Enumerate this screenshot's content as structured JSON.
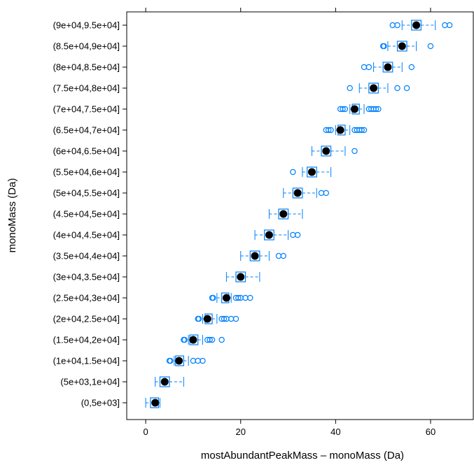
{
  "chart_data": {
    "type": "boxplot",
    "xlabel": "mostAbundantPeakMass – monoMass (Da)",
    "ylabel": "monoMass (Da)",
    "xlim": [
      -4,
      69
    ],
    "x_ticks": [
      0,
      20,
      40,
      60
    ],
    "grid": false,
    "colors": {
      "box": "#0080ff",
      "median": "#000000"
    },
    "categories": [
      "(0,5e+03]",
      "(5e+03,1e+04]",
      "(1e+04,1.5e+04]",
      "(1.5e+04,2e+04]",
      "(2e+04,2.5e+04]",
      "(2.5e+04,3e+04]",
      "(3e+04,3.5e+04]",
      "(3.5e+04,4e+04]",
      "(4e+04,4.5e+04]",
      "(4.5e+04,5e+04]",
      "(5e+04,5.5e+04]",
      "(5.5e+04,6e+04]",
      "(6e+04,6.5e+04]",
      "(6.5e+04,7e+04]",
      "(7e+04,7.5e+04]",
      "(7.5e+04,8e+04]",
      "(8e+04,8.5e+04]",
      "(8.5e+04,9e+04]",
      "(9e+04,9.5e+04]"
    ],
    "boxes": [
      {
        "whisker_low": 0,
        "q1": 1,
        "median": 2,
        "q3": 2.7,
        "whisker_high": 3,
        "outliers": []
      },
      {
        "whisker_low": 2,
        "q1": 3,
        "median": 4,
        "q3": 5,
        "whisker_high": 8,
        "outliers": []
      },
      {
        "whisker_low": 6,
        "q1": 6.3,
        "median": 7,
        "q3": 8,
        "whisker_high": 9,
        "outliers": [
          5,
          5.2,
          10,
          11,
          12
        ]
      },
      {
        "whisker_low": 9,
        "q1": 9.3,
        "median": 10,
        "q3": 11,
        "whisker_high": 12,
        "outliers": [
          8,
          8.2,
          13,
          13.5,
          14,
          16
        ]
      },
      {
        "whisker_low": 12,
        "q1": 12.5,
        "median": 13,
        "q3": 14,
        "whisker_high": 15,
        "outliers": [
          11,
          11.2,
          16,
          16.5,
          17,
          18,
          19
        ]
      },
      {
        "whisker_low": 15,
        "q1": 16,
        "median": 17,
        "q3": 17.5,
        "whisker_high": 18,
        "outliers": [
          14,
          14.2,
          19,
          19.5,
          20,
          21,
          22
        ]
      },
      {
        "whisker_low": 17,
        "q1": 19,
        "median": 20,
        "q3": 21,
        "whisker_high": 24,
        "outliers": []
      },
      {
        "whisker_low": 20,
        "q1": 22,
        "median": 23,
        "q3": 24,
        "whisker_high": 26,
        "outliers": [
          28,
          29
        ]
      },
      {
        "whisker_low": 23,
        "q1": 25,
        "median": 26,
        "q3": 27,
        "whisker_high": 30,
        "outliers": [
          31,
          32
        ]
      },
      {
        "whisker_low": 26,
        "q1": 28,
        "median": 29,
        "q3": 30,
        "whisker_high": 33,
        "outliers": []
      },
      {
        "whisker_low": 29,
        "q1": 31,
        "median": 32,
        "q3": 33,
        "whisker_high": 36,
        "outliers": [
          37,
          38
        ]
      },
      {
        "whisker_low": 33,
        "q1": 34,
        "median": 35,
        "q3": 36,
        "whisker_high": 39,
        "outliers": [
          31
        ]
      },
      {
        "whisker_low": 35,
        "q1": 37,
        "median": 38,
        "q3": 39,
        "whisker_high": 42,
        "outliers": [
          44
        ]
      },
      {
        "whisker_low": 40,
        "q1": 40.5,
        "median": 41,
        "q3": 42,
        "whisker_high": 43,
        "outliers": [
          38,
          38.5,
          39,
          44,
          44.5,
          45,
          45.5,
          46
        ]
      },
      {
        "whisker_low": 43,
        "q1": 43.5,
        "median": 44,
        "q3": 45,
        "whisker_high": 46,
        "outliers": [
          41,
          41.5,
          42,
          47,
          47.5,
          48,
          48.5,
          49
        ]
      },
      {
        "whisker_low": 45,
        "q1": 47,
        "median": 48,
        "q3": 49,
        "whisker_high": 51,
        "outliers": [
          43,
          53,
          55
        ]
      },
      {
        "whisker_low": 48,
        "q1": 50,
        "median": 51,
        "q3": 52,
        "whisker_high": 54,
        "outliers": [
          46,
          47,
          56
        ]
      },
      {
        "whisker_low": 51,
        "q1": 53,
        "median": 54,
        "q3": 55,
        "whisker_high": 57,
        "outliers": [
          50,
          50.2,
          60
        ]
      },
      {
        "whisker_low": 54,
        "q1": 56,
        "median": 57,
        "q3": 58,
        "whisker_high": 61,
        "outliers": [
          52,
          53,
          63,
          64
        ]
      }
    ]
  }
}
